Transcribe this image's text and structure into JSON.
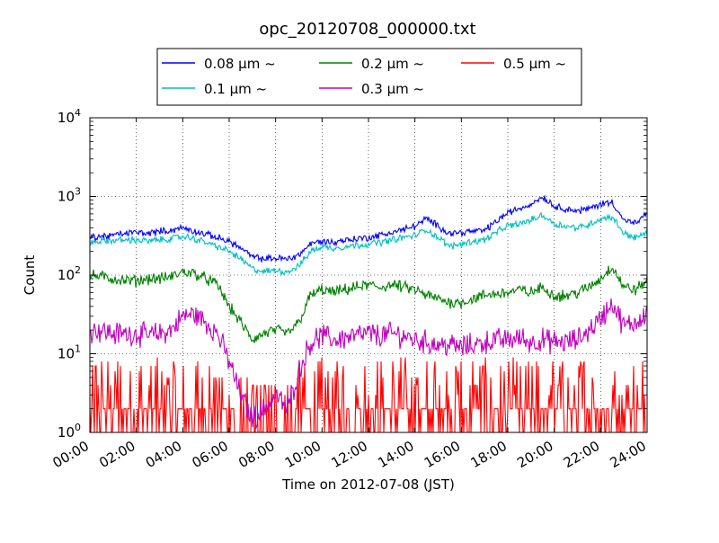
{
  "chart_data": {
    "type": "line",
    "title": "opc_20120708_000000.txt",
    "xlabel": "Time on 2012-07-08 (JST)",
    "ylabel": "Count",
    "yscale": "log",
    "ylim": [
      1,
      10000
    ],
    "xlim": [
      "00:00",
      "24:00"
    ],
    "grid": true,
    "legend_position": "top",
    "x_ticks": [
      "00:00",
      "02:00",
      "04:00",
      "06:00",
      "08:00",
      "10:00",
      "12:00",
      "14:00",
      "16:00",
      "18:00",
      "20:00",
      "22:00",
      "24:00"
    ],
    "y_ticks": [
      {
        "base": "10",
        "exp": "0"
      },
      {
        "base": "10",
        "exp": "1"
      },
      {
        "base": "10",
        "exp": "2"
      },
      {
        "base": "10",
        "exp": "3"
      },
      {
        "base": "10",
        "exp": "4"
      }
    ],
    "x_hours": [
      0,
      0.5,
      1,
      1.5,
      2,
      2.5,
      3,
      3.5,
      4,
      4.5,
      5,
      5.5,
      6,
      6.5,
      7,
      7.5,
      8,
      8.5,
      9,
      9.5,
      10,
      10.5,
      11,
      11.5,
      12,
      12.5,
      13,
      13.5,
      14,
      14.5,
      15,
      15.5,
      16,
      16.5,
      17,
      17.5,
      18,
      18.5,
      19,
      19.5,
      20,
      20.5,
      21,
      21.5,
      22,
      22.5,
      23,
      23.5,
      24
    ],
    "series": [
      {
        "name": "0.08 μm ~",
        "color": "#0000ff",
        "values": [
          300,
          310,
          320,
          340,
          350,
          340,
          360,
          370,
          400,
          360,
          330,
          300,
          270,
          220,
          170,
          160,
          165,
          160,
          180,
          250,
          270,
          260,
          280,
          290,
          300,
          320,
          350,
          380,
          420,
          520,
          420,
          340,
          350,
          360,
          370,
          480,
          620,
          700,
          800,
          1000,
          750,
          700,
          650,
          700,
          800,
          850,
          500,
          450,
          600
        ]
      },
      {
        "name": "0.1 μm ~",
        "color": "#00bfbf",
        "values": [
          260,
          270,
          275,
          280,
          280,
          270,
          280,
          290,
          310,
          290,
          260,
          230,
          200,
          160,
          120,
          110,
          115,
          110,
          130,
          200,
          230,
          220,
          230,
          240,
          250,
          260,
          280,
          300,
          320,
          380,
          300,
          230,
          250,
          270,
          280,
          350,
          420,
          450,
          500,
          580,
          450,
          420,
          400,
          440,
          520,
          550,
          340,
          300,
          340
        ]
      },
      {
        "name": "0.2 μm ~",
        "color": "#008000",
        "values": [
          100,
          95,
          90,
          85,
          85,
          90,
          90,
          95,
          110,
          105,
          90,
          75,
          40,
          25,
          15,
          18,
          20,
          18,
          25,
          55,
          65,
          60,
          65,
          70,
          75,
          70,
          75,
          70,
          65,
          55,
          50,
          45,
          45,
          50,
          55,
          58,
          60,
          65,
          60,
          70,
          55,
          55,
          60,
          70,
          90,
          130,
          70,
          65,
          85
        ]
      },
      {
        "name": "0.3 μm ~",
        "color": "#bf00bf",
        "values": [
          20,
          20,
          18,
          18,
          18,
          17,
          18,
          20,
          30,
          32,
          25,
          18,
          8,
          3,
          1.5,
          2,
          3,
          2,
          6,
          14,
          17,
          15,
          16,
          17,
          18,
          17,
          18,
          17,
          15,
          14,
          13,
          13,
          12,
          13,
          14,
          15,
          15,
          16,
          14,
          15,
          14,
          14,
          15,
          20,
          28,
          45,
          22,
          25,
          35
        ]
      },
      {
        "name": "0.5 μm ~",
        "color": "#ff0000",
        "values": [
          2,
          2,
          2,
          2,
          2,
          2,
          2,
          2,
          2,
          2,
          2,
          2,
          2,
          1,
          1,
          1,
          1,
          1,
          2,
          2,
          2,
          2,
          2,
          2,
          2,
          2,
          2,
          2,
          2,
          2,
          2,
          2,
          2,
          2,
          2,
          2,
          2,
          2,
          2,
          2,
          2,
          2,
          2,
          2,
          2,
          2,
          2,
          2,
          3
        ]
      }
    ]
  }
}
